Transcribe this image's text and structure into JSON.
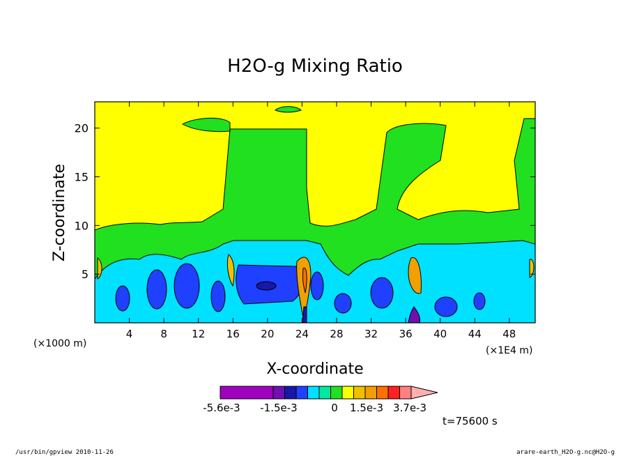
{
  "chart_data": {
    "type": "heatmap",
    "title": "H2O-g Mixing Ratio",
    "xlabel": "X-coordinate",
    "ylabel": "Z-coordinate",
    "x_unit": "(×1000 m)",
    "y_unit_note": "(×1E4 m)",
    "xlim": [
      0,
      51
    ],
    "ylim": [
      0,
      22.7
    ],
    "x_ticks": [
      4,
      8,
      12,
      16,
      20,
      24,
      28,
      32,
      36,
      40,
      44,
      48
    ],
    "y_ticks": [
      5,
      10,
      15,
      20
    ],
    "colorbar": {
      "colors": [
        "#a000c0",
        "#7010b0",
        "#1818a8",
        "#2040ff",
        "#00e0ff",
        "#00e8a0",
        "#20e020",
        "#ffff00",
        "#f0c000",
        "#f0a000",
        "#ff7000",
        "#ff2020",
        "#ff8080",
        "#ffb0b0"
      ],
      "labels": [
        "-5.6e-3",
        "-1.5e-3",
        "0",
        "1.5e-3",
        "3.7e-3"
      ]
    },
    "time_label": "t=75600 s"
  },
  "footer": {
    "left": "/usr/bin/gpview   2010-11-26",
    "right": "arare-earth_H2O-g.nc@H2O-g"
  }
}
